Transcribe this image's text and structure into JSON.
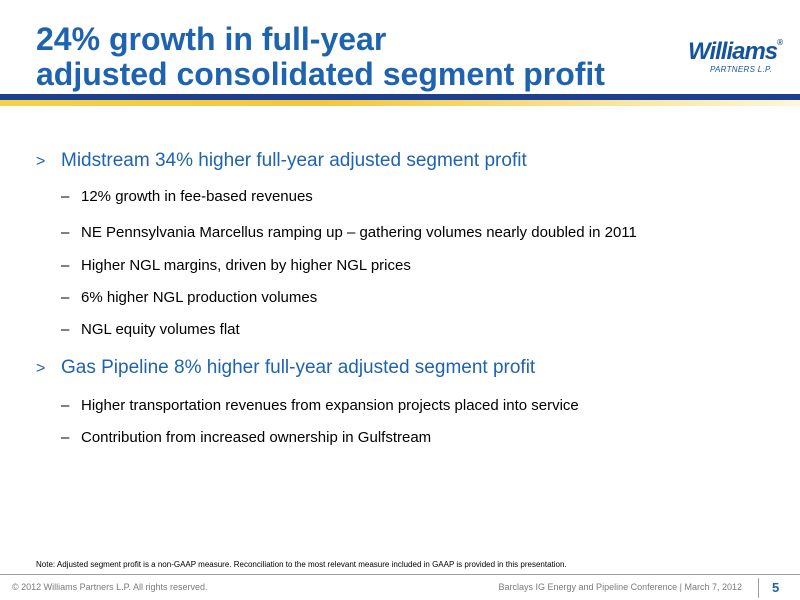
{
  "slide": {
    "title_line1": "24% growth in full-year",
    "title_line2": "adjusted consolidated segment profit"
  },
  "logo": {
    "word": "Williams",
    "reg": "®",
    "sub": "PARTNERS L.P."
  },
  "bullets": [
    {
      "mark": ">",
      "text": "Midstream 34% higher full-year adjusted segment profit",
      "sub": [
        {
          "mark": "–",
          "text": "12% growth in fee-based revenues"
        },
        {
          "mark": "–",
          "text": "NE Pennsylvania Marcellus ramping up – gathering volumes nearly doubled in 2011"
        },
        {
          "mark": "–",
          "text": "Higher NGL margins, driven by higher NGL prices"
        },
        {
          "mark": "–",
          "text": "6% higher NGL production volumes"
        },
        {
          "mark": "–",
          "text": "NGL equity volumes flat"
        }
      ]
    },
    {
      "mark": ">",
      "text": "Gas Pipeline 8% higher full-year adjusted segment profit",
      "sub": [
        {
          "mark": "–",
          "text": "Higher transportation revenues from expansion projects placed into service"
        },
        {
          "mark": "–",
          "text": "Contribution from increased ownership in Gulfstream"
        }
      ]
    }
  ],
  "note": "Note:  Adjusted segment profit is a non-GAAP measure.  Reconciliation to the most relevant measure included in GAAP is provided in this presentation.",
  "footer": {
    "copyright": "© 2012 Williams Partners L.P.  All rights reserved.",
    "event": "Barclays IG Energy and Pipeline Conference  |  March 7, 2012",
    "page": "5"
  },
  "colors": {
    "title": "#1e63b0",
    "band_blue": "#1d3f8f",
    "band_gold": "#f3d24a",
    "logo": "#15539c"
  }
}
